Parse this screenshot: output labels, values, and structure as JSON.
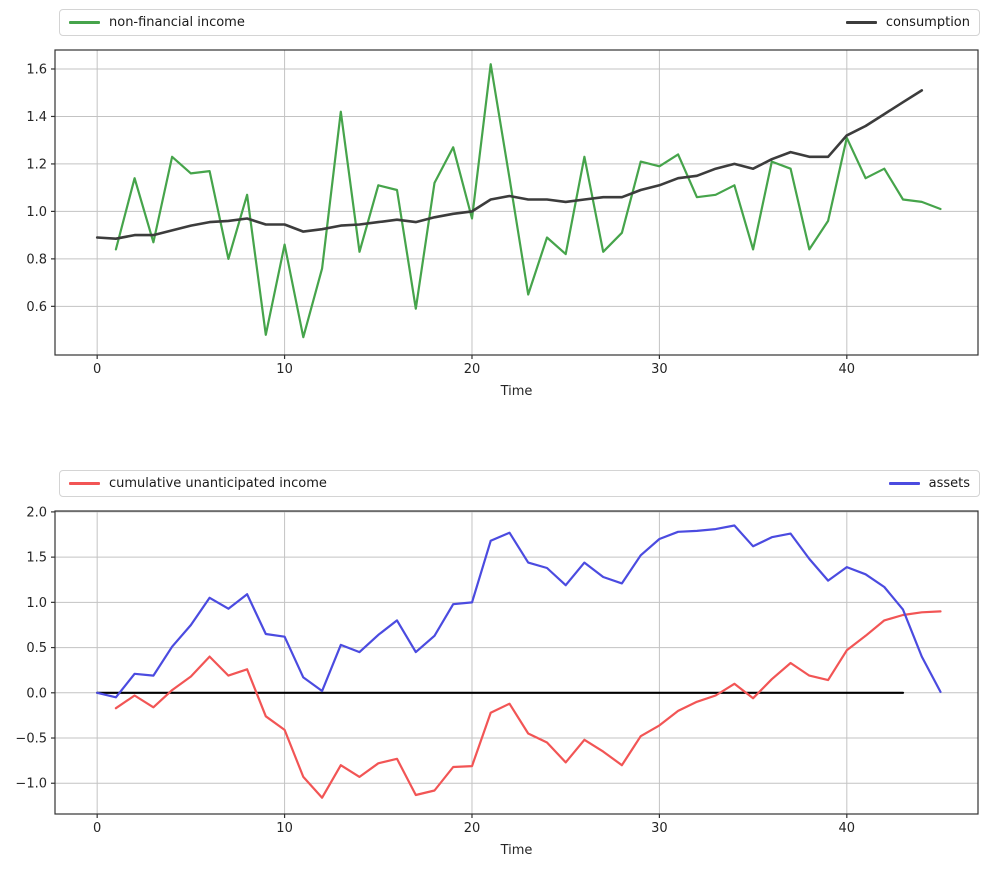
{
  "chart_data": [
    {
      "id": "top",
      "type": "line",
      "title": "",
      "xlabel": "Time",
      "ylabel": "",
      "grid": true,
      "xlim": [
        -2.25,
        47.0
      ],
      "ylim": [
        0.395,
        1.68
      ],
      "xticks": [
        0,
        10,
        20,
        30,
        40
      ],
      "xtick_labels": [
        "0",
        "10",
        "20",
        "30",
        "40"
      ],
      "yticks": [
        0.6,
        0.8,
        1.0,
        1.2,
        1.4,
        1.6
      ],
      "ytick_labels": [
        "0.6",
        "0.8",
        "1.0",
        "1.2",
        "1.4",
        "1.6"
      ],
      "legend_position": "spanning-top",
      "legend": [
        {
          "label": "non-financial income",
          "color": "#46a44b"
        },
        {
          "label": "consumption",
          "color": "#3c3c3c"
        }
      ],
      "series": [
        {
          "name": "non-financial income",
          "color": "#46a44b",
          "width": 2.2,
          "x_start": 1,
          "values": [
            0.84,
            1.14,
            0.87,
            1.23,
            1.16,
            1.17,
            0.8,
            1.07,
            0.48,
            0.86,
            0.47,
            0.76,
            1.42,
            0.83,
            1.11,
            1.09,
            0.59,
            1.12,
            1.27,
            0.97,
            1.62,
            1.14,
            0.65,
            0.89,
            0.82,
            1.23,
            0.83,
            0.91,
            1.21,
            1.19,
            1.24,
            1.06,
            1.07,
            1.11,
            0.84,
            1.21,
            1.18,
            0.84,
            0.96,
            1.31,
            1.14,
            1.18,
            1.05,
            1.04,
            1.01
          ]
        },
        {
          "name": "consumption",
          "color": "#3c3c3c",
          "width": 2.6,
          "x_start": 0,
          "values": [
            0.89,
            0.885,
            0.9,
            0.9,
            0.92,
            0.94,
            0.955,
            0.96,
            0.97,
            0.945,
            0.945,
            0.915,
            0.925,
            0.94,
            0.945,
            0.955,
            0.965,
            0.955,
            0.975,
            0.99,
            1.0,
            1.05,
            1.065,
            1.05,
            1.05,
            1.04,
            1.05,
            1.06,
            1.06,
            1.09,
            1.11,
            1.14,
            1.15,
            1.18,
            1.2,
            1.18,
            1.22,
            1.25,
            1.23,
            1.23,
            1.32,
            1.36,
            1.41,
            1.46,
            1.51
          ]
        }
      ]
    },
    {
      "id": "bottom",
      "type": "line",
      "title": "",
      "xlabel": "Time",
      "ylabel": "",
      "grid": true,
      "xlim": [
        -2.25,
        47.0
      ],
      "ylim": [
        -1.34,
        2.01
      ],
      "xticks": [
        0,
        10,
        20,
        30,
        40
      ],
      "xtick_labels": [
        "0",
        "10",
        "20",
        "30",
        "40"
      ],
      "yticks": [
        2.0,
        1.5,
        1.0,
        0.5,
        0.0,
        -0.5,
        -1.0
      ],
      "ytick_labels": [
        "2.0",
        "1.5",
        "1.0",
        "0.5",
        "0.0",
        "−0.5",
        "−1.0"
      ],
      "legend_position": "spanning-top",
      "legend": [
        {
          "label": "cumulative unanticipated income",
          "color": "#f25555"
        },
        {
          "label": "assets",
          "color": "#4b4be0"
        }
      ],
      "series": [
        {
          "name": "zero-baseline",
          "color": "#000000",
          "width": 2.2,
          "x_start": 0,
          "values": [
            0,
            0,
            0,
            0,
            0,
            0,
            0,
            0,
            0,
            0,
            0,
            0,
            0,
            0,
            0,
            0,
            0,
            0,
            0,
            0,
            0,
            0,
            0,
            0,
            0,
            0,
            0,
            0,
            0,
            0,
            0,
            0,
            0,
            0,
            0,
            0,
            0,
            0,
            0,
            0,
            0,
            0,
            0,
            0
          ]
        },
        {
          "name": "cumulative unanticipated income",
          "color": "#f25555",
          "width": 2.2,
          "x_start": 1,
          "values": [
            -0.17,
            -0.03,
            -0.16,
            0.03,
            0.18,
            0.4,
            0.19,
            0.26,
            -0.26,
            -0.41,
            -0.93,
            -1.16,
            -0.8,
            -0.93,
            -0.78,
            -0.73,
            -1.13,
            -1.08,
            -0.82,
            -0.81,
            -0.22,
            -0.12,
            -0.45,
            -0.55,
            -0.77,
            -0.52,
            -0.65,
            -0.8,
            -0.48,
            -0.36,
            -0.2,
            -0.1,
            -0.03,
            0.1,
            -0.06,
            0.15,
            0.33,
            0.19,
            0.14,
            0.47,
            0.63,
            0.8,
            0.86,
            0.89,
            0.9
          ]
        },
        {
          "name": "assets",
          "color": "#4b4be0",
          "width": 2.2,
          "x_start": 0,
          "values": [
            0.0,
            -0.05,
            0.21,
            0.19,
            0.51,
            0.75,
            1.05,
            0.93,
            1.09,
            0.65,
            0.62,
            0.17,
            0.02,
            0.53,
            0.45,
            0.64,
            0.8,
            0.45,
            0.63,
            0.98,
            1.0,
            1.68,
            1.77,
            1.44,
            1.38,
            1.19,
            1.44,
            1.28,
            1.21,
            1.52,
            1.7,
            1.78,
            1.79,
            1.81,
            1.85,
            1.62,
            1.72,
            1.76,
            1.48,
            1.24,
            1.39,
            1.31,
            1.17,
            0.92,
            0.4,
            0.01
          ]
        }
      ]
    }
  ],
  "style": {
    "background": "#ffffff",
    "grid_color": "#c3c3c3",
    "spine_color": "#333333",
    "tick_text_color": "#262626"
  }
}
